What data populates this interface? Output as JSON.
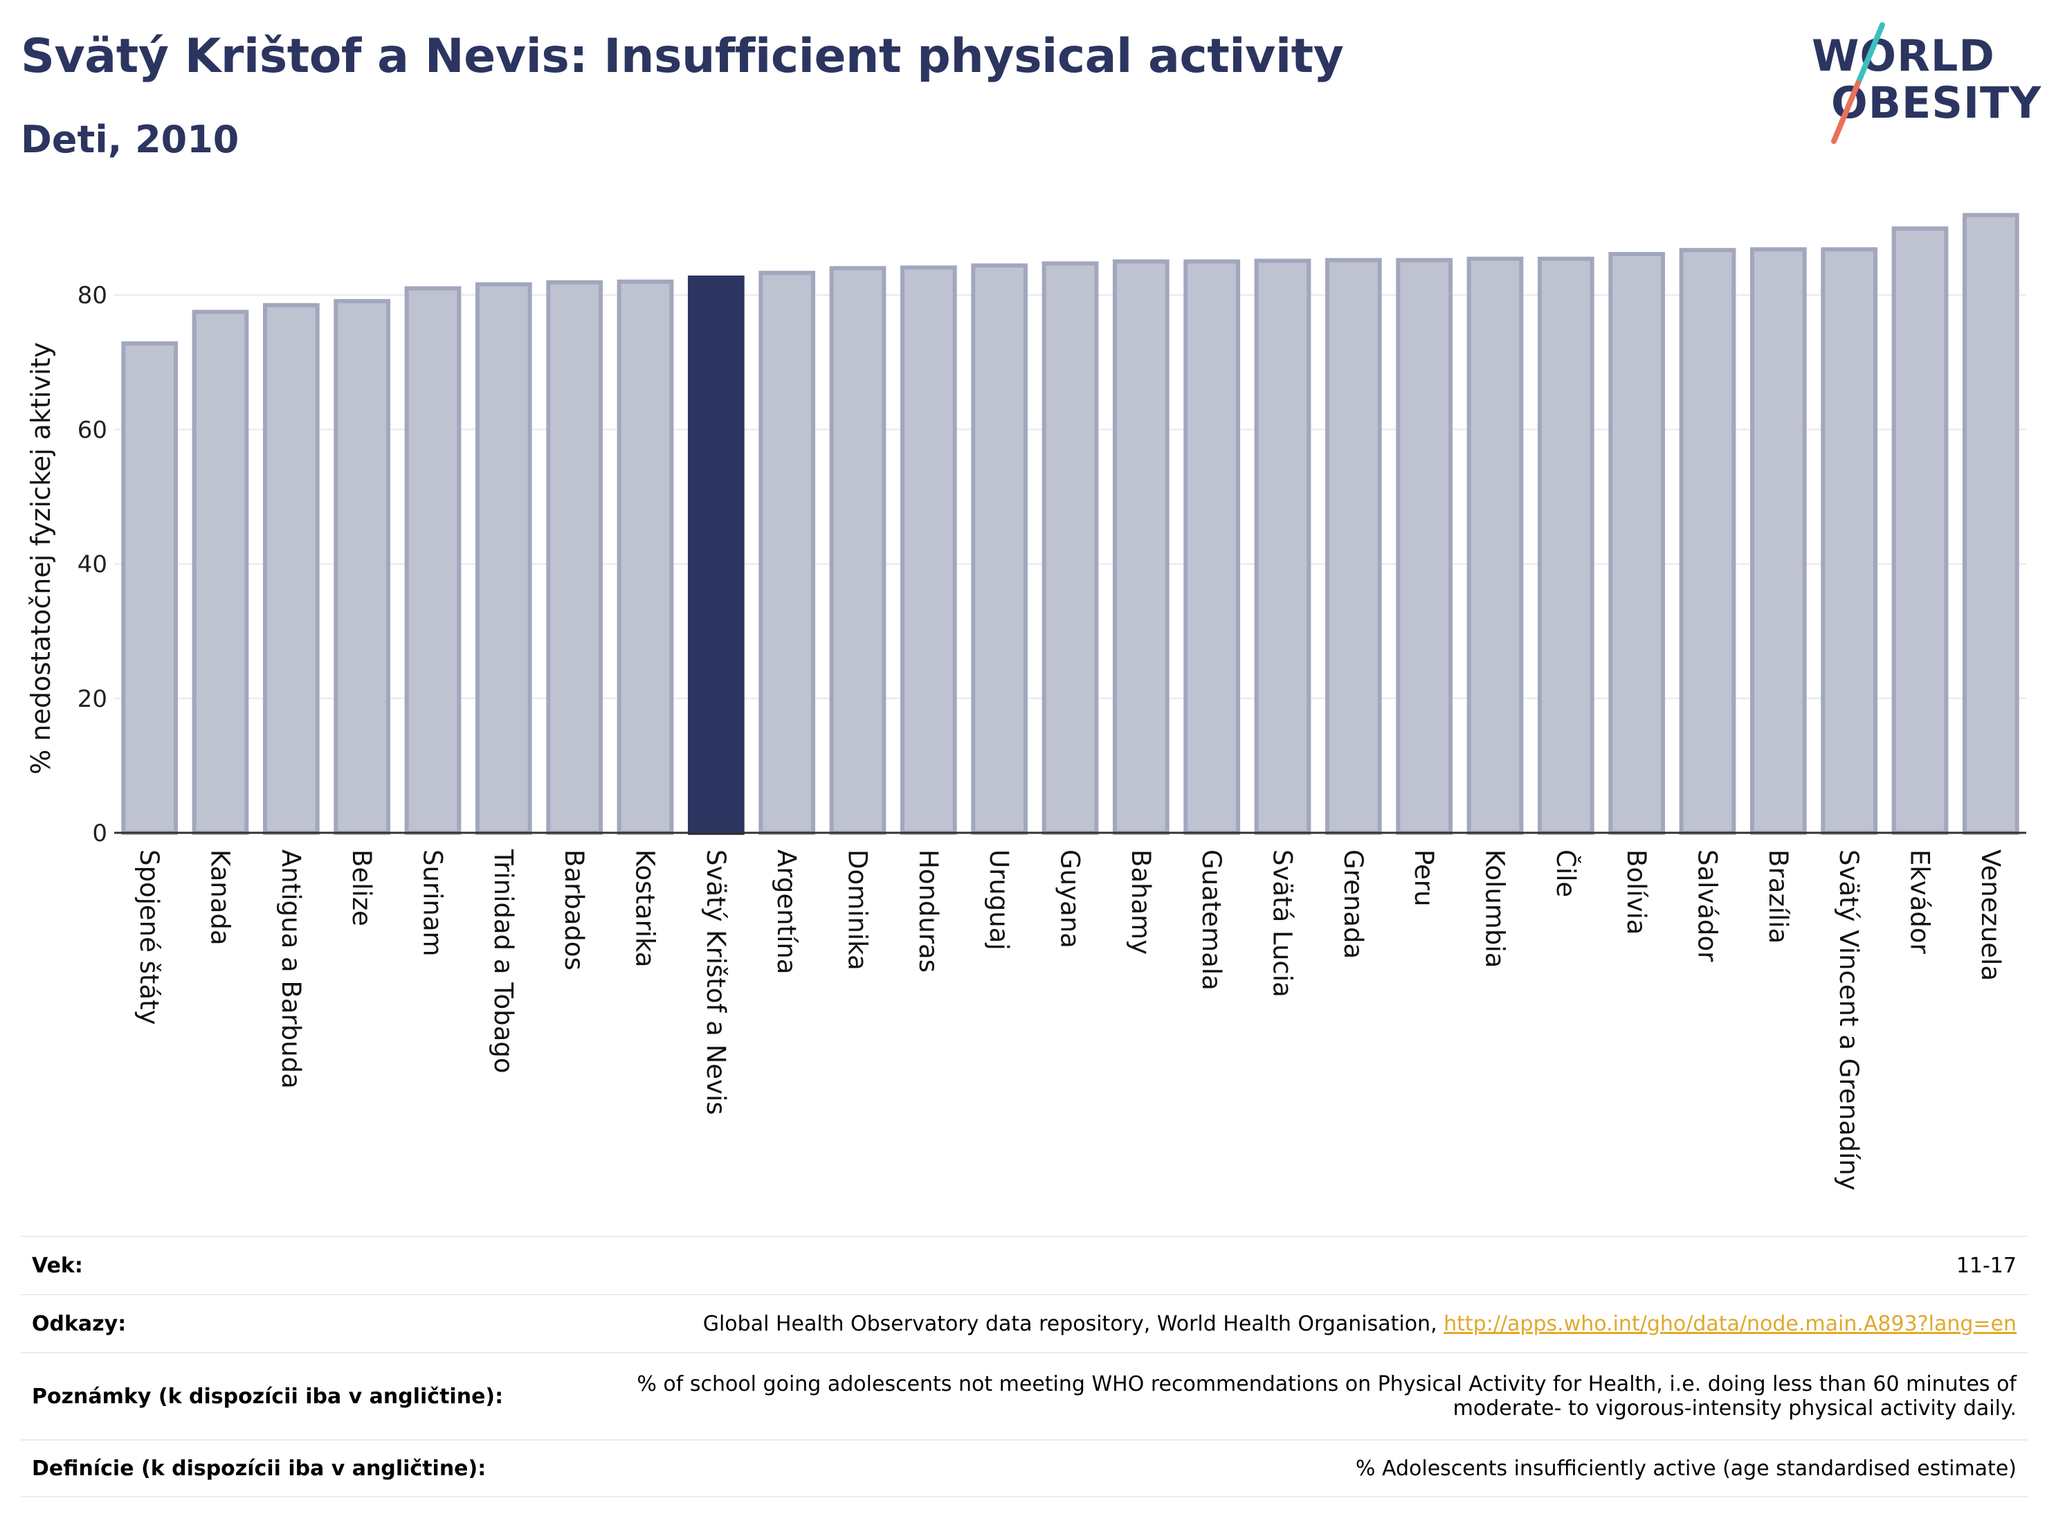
{
  "header": {
    "title": "Svätý Krištof a Nevis: Insufficient physical activity",
    "subtitle": "Deti, 2010"
  },
  "logo": {
    "line1": "WORLD",
    "line2": "OBESITY",
    "colors": {
      "text": "#2b3560",
      "slash_top": "#3bbfbf",
      "slash_bottom": "#e8715a"
    }
  },
  "chart_data": {
    "type": "bar",
    "title": "Svätý Krištof a Nevis: Insufficient physical activity",
    "subtitle": "Deti, 2010",
    "ylabel": "% nedostatočnej fyzickej aktivity",
    "xlabel": "",
    "ylim": [
      0,
      93
    ],
    "yticks": [
      0,
      20,
      40,
      60,
      80
    ],
    "grid": true,
    "highlight": "Svätý Krištof a Nevis",
    "colors": {
      "bar": "#bfc2d0",
      "bar_edge": "#a2a7be",
      "highlight": "#2b3560"
    },
    "categories": [
      "Spojené štáty",
      "Kanada",
      "Antigua a Barbuda",
      "Belize",
      "Surinam",
      "Trinidad a Tobago",
      "Barbados",
      "Kostarika",
      "Svätý Krištof a Nevis",
      "Argentína",
      "Dominika",
      "Honduras",
      "Uruguaj",
      "Guyana",
      "Bahamy",
      "Guatemala",
      "Svätá Lucia",
      "Grenada",
      "Peru",
      "Kolumbia",
      "Čile",
      "Bolívia",
      "Salvádor",
      "Brazília",
      "Svätý Vincent a Grenadíny",
      "Ekvádor",
      "Venezuela"
    ],
    "values": [
      72.8,
      77.5,
      78.5,
      79.1,
      81.0,
      81.6,
      81.9,
      82.0,
      82.6,
      83.3,
      84.0,
      84.1,
      84.4,
      84.7,
      85.0,
      85.0,
      85.1,
      85.2,
      85.2,
      85.4,
      85.4,
      86.1,
      86.7,
      86.8,
      86.8,
      89.9,
      91.9
    ]
  },
  "meta": {
    "age_label": "Vek:",
    "age_value": "11-17",
    "refs_label": "Odkazy:",
    "refs_text": "Global Health Observatory data repository, World Health Organisation, ",
    "refs_link": "http://apps.who.int/gho/data/node.main.A893?lang=en",
    "notes_label": "Poznámky (k dispozícii iba v angličtine):",
    "notes_value": "% of school going adolescents not meeting WHO recommendations on Physical Activity for Health, i.e. doing less than 60 minutes of moderate- to vigorous-intensity physical activity daily.",
    "def_label": "Definície (k dispozícii iba v angličtine):",
    "def_value": "% Adolescents insufficiently active (age standardised estimate)"
  }
}
